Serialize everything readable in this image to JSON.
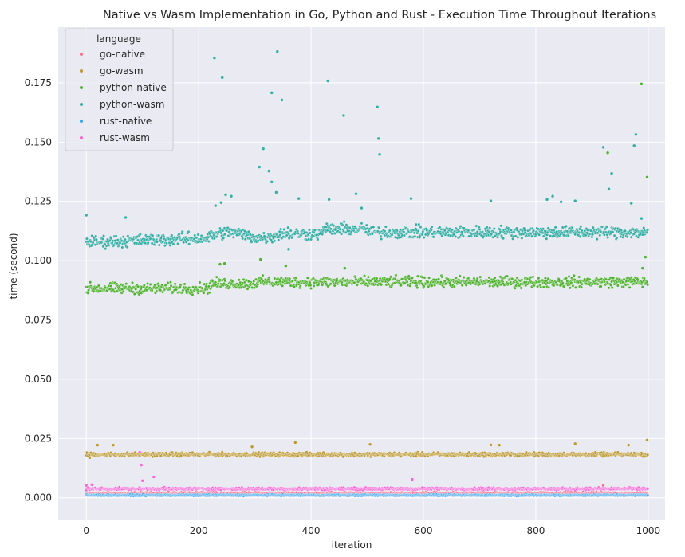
{
  "chart_data": {
    "type": "scatter",
    "title": "Native vs Wasm Implementation in Go, Python and Rust - Execution Time Throughout Iterations",
    "xlabel": "iteration",
    "ylabel": "time (second)",
    "xlim": [
      -50,
      1030
    ],
    "ylim": [
      -0.0095,
      0.1985
    ],
    "x_ticks": [
      0,
      200,
      400,
      600,
      800,
      1000
    ],
    "x_tick_labels": [
      "0",
      "200",
      "400",
      "600",
      "800",
      "1000"
    ],
    "y_ticks": [
      0.0,
      0.025,
      0.05,
      0.075,
      0.1,
      0.125,
      0.15,
      0.175
    ],
    "y_tick_labels": [
      "0.000",
      "0.025",
      "0.050",
      "0.075",
      "0.100",
      "0.125",
      "0.150",
      "0.175"
    ],
    "grid": true,
    "background": "#eaeaf2",
    "legend": {
      "title": "language",
      "placement": "top-left"
    },
    "iterations": [
      0,
      999
    ],
    "series": [
      {
        "name": "go-native",
        "color": "#f77189",
        "baseline": 0.0018,
        "spread": 0.0006,
        "outliers": [
          [
            920,
            0.0052
          ],
          [
            3,
            0.0035
          ]
        ]
      },
      {
        "name": "go-wasm",
        "color": "#bb9832",
        "baseline": 0.0183,
        "spread": 0.0008,
        "outliers": [
          [
            20,
            0.0222
          ],
          [
            48,
            0.0222
          ],
          [
            295,
            0.0215
          ],
          [
            372,
            0.0233
          ],
          [
            505,
            0.0225
          ],
          [
            720,
            0.0223
          ],
          [
            735,
            0.0222
          ],
          [
            870,
            0.0228
          ],
          [
            965,
            0.0222
          ],
          [
            998,
            0.0243
          ],
          [
            6,
            0.0169
          ]
        ]
      },
      {
        "name": "python-native",
        "color": "#50b131",
        "baseline": 0.0898,
        "spread": 0.0022,
        "outliers": [
          [
            238,
            0.0985
          ],
          [
            246,
            0.0988
          ],
          [
            310,
            0.1005
          ],
          [
            355,
            0.0978
          ],
          [
            460,
            0.0968
          ],
          [
            990,
            0.0968
          ],
          [
            995,
            0.1015
          ],
          [
            998,
            0.1352
          ],
          [
            928,
            0.1455
          ],
          [
            988,
            0.1745
          ]
        ]
      },
      {
        "name": "python-wasm",
        "color": "#36ada4",
        "baseline": 0.1108,
        "spread": 0.0025,
        "outliers": [
          [
            0,
            0.1192
          ],
          [
            70,
            0.1182
          ],
          [
            228,
            0.1855
          ],
          [
            242,
            0.1772
          ],
          [
            330,
            0.1708
          ],
          [
            340,
            0.1882
          ],
          [
            348,
            0.1678
          ],
          [
            430,
            0.1758
          ],
          [
            458,
            0.1612
          ],
          [
            518,
            0.1648
          ],
          [
            520,
            0.1515
          ],
          [
            522,
            0.1448
          ],
          [
            308,
            0.1395
          ],
          [
            315,
            0.1472
          ],
          [
            325,
            0.1378
          ],
          [
            330,
            0.1332
          ],
          [
            338,
            0.1288
          ],
          [
            248,
            0.1278
          ],
          [
            258,
            0.1272
          ],
          [
            230,
            0.1232
          ],
          [
            240,
            0.1245
          ],
          [
            378,
            0.1262
          ],
          [
            432,
            0.1258
          ],
          [
            480,
            0.1282
          ],
          [
            490,
            0.1222
          ],
          [
            578,
            0.1262
          ],
          [
            720,
            0.1252
          ],
          [
            820,
            0.1258
          ],
          [
            830,
            0.1272
          ],
          [
            845,
            0.1248
          ],
          [
            870,
            0.1252
          ],
          [
            920,
            0.1478
          ],
          [
            935,
            0.1368
          ],
          [
            930,
            0.1302
          ],
          [
            975,
            0.1485
          ],
          [
            978,
            0.1532
          ],
          [
            970,
            0.1242
          ],
          [
            988,
            0.1178
          ],
          [
            360,
            0.1048
          ]
        ]
      },
      {
        "name": "rust-native",
        "color": "#3ba3ec",
        "baseline": 0.0011,
        "spread": 0.0003,
        "outliers": [
          [
            0,
            0.0032
          ]
        ]
      },
      {
        "name": "rust-wasm",
        "color": "#f564d4",
        "baseline": 0.0038,
        "spread": 0.0005,
        "outliers": [
          [
            95,
            0.0192
          ],
          [
            98,
            0.0138
          ],
          [
            100,
            0.0072
          ],
          [
            120,
            0.0088
          ],
          [
            580,
            0.0078
          ],
          [
            0,
            0.0052
          ],
          [
            10,
            0.0055
          ]
        ]
      }
    ]
  }
}
